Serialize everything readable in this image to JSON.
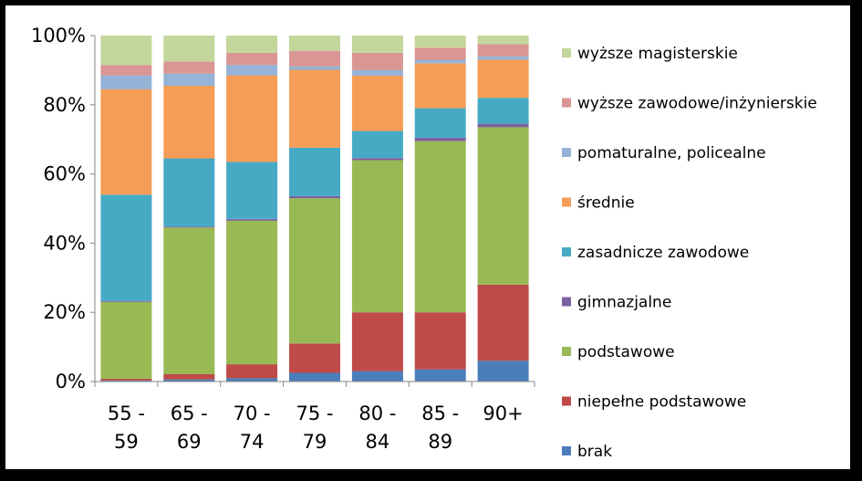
{
  "chart_data": {
    "type": "bar",
    "stacked": true,
    "percent": true,
    "categories": [
      [
        "55 -",
        "59"
      ],
      [
        "65 -",
        "69"
      ],
      [
        "70 -",
        "74"
      ],
      [
        "75 -",
        "79"
      ],
      [
        "80 -",
        "84"
      ],
      [
        "85 -",
        "89"
      ],
      [
        "90+"
      ]
    ],
    "yticks": [
      "0%",
      "20%",
      "40%",
      "60%",
      "80%",
      "100%"
    ],
    "ylim": [
      0,
      100
    ],
    "grid": false,
    "legend_position": "right",
    "series": [
      {
        "name": "brak",
        "color": "#4a7ebb",
        "values": [
          0.3,
          0.6,
          1.0,
          2.5,
          3.0,
          3.5,
          6.0
        ]
      },
      {
        "name": "niepełne podstawowe",
        "color": "#be4b48",
        "values": [
          0.5,
          1.5,
          4.0,
          8.5,
          17.0,
          16.5,
          22.0
        ]
      },
      {
        "name": "podstawowe",
        "color": "#98b954",
        "values": [
          22.2,
          42.4,
          41.5,
          42.0,
          44.0,
          49.5,
          45.5
        ]
      },
      {
        "name": "gimnazjalne",
        "color": "#7d60a0",
        "values": [
          0.3,
          0.3,
          0.5,
          0.6,
          0.6,
          1.0,
          1.0
        ]
      },
      {
        "name": "zasadnicze zawodowe",
        "color": "#46aac5",
        "values": [
          30.7,
          19.7,
          16.5,
          14.0,
          7.8,
          8.5,
          7.5
        ]
      },
      {
        "name": "średnie",
        "color": "#f59d56",
        "values": [
          30.5,
          21.0,
          25.0,
          22.5,
          16.0,
          13.0,
          11.0
        ]
      },
      {
        "name": "pomaturalne, policealne",
        "color": "#95b3d7",
        "values": [
          4.0,
          3.5,
          3.0,
          1.0,
          1.6,
          1.0,
          1.0
        ]
      },
      {
        "name": "wyższe zawodowe/inżynierskie",
        "color": "#d99694",
        "values": [
          3.0,
          3.5,
          3.5,
          4.5,
          5.0,
          3.5,
          3.5
        ]
      },
      {
        "name": "wyższe magisterskie",
        "color": "#c3d69b",
        "values": [
          8.5,
          7.5,
          5.0,
          4.4,
          5.0,
          3.5,
          2.5
        ]
      }
    ]
  }
}
